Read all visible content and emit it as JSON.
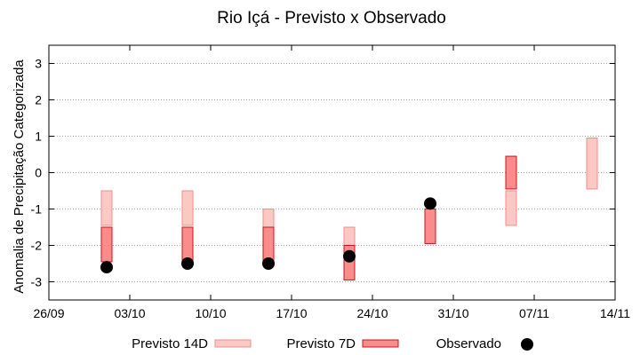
{
  "chart_data": {
    "type": "range",
    "title": "Rio Içá - Previsto x Observado",
    "xlabel": "",
    "ylabel": "Anomalia de Precipitação Categorizada",
    "ylim": [
      -3.5,
      3.5
    ],
    "yticks": [
      3,
      2,
      1,
      0,
      -1,
      -2,
      -3
    ],
    "ytick_labels": [
      "3",
      "2",
      "1",
      "0",
      "-1",
      "-2",
      "-3"
    ],
    "xlim_days": [
      0,
      49
    ],
    "xticks_days": [
      0,
      7,
      14,
      21,
      28,
      35,
      42,
      49
    ],
    "xtick_labels": [
      "26/09",
      "03/10",
      "10/10",
      "17/10",
      "24/10",
      "31/10",
      "07/11",
      "14/11"
    ],
    "grid": true,
    "legend_position": "bottom",
    "legend": {
      "p14": "Previsto 14D",
      "p7": "Previsto 7D",
      "obs": "Observado"
    },
    "colors": {
      "p14_fill": "#fbc8c4",
      "p14_edge": "#f08e8a",
      "p7_fill": "#fb8c8c",
      "p7_edge": "#c8141e",
      "obs": "#000000"
    },
    "series": [
      {
        "name": "Previsto 14D",
        "points": [
          {
            "x": 5.0,
            "low": -1.45,
            "high": -0.5
          },
          {
            "x": 12.0,
            "low": -1.45,
            "high": -0.5
          },
          {
            "x": 19.0,
            "low": -2.45,
            "high": -1.0
          },
          {
            "x": 26.0,
            "low": -2.45,
            "high": -1.5
          },
          {
            "x": 40.0,
            "low": -1.45,
            "high": -0.5
          },
          {
            "x": 47.0,
            "low": -0.45,
            "high": 0.95
          }
        ]
      },
      {
        "name": "Previsto 7D",
        "points": [
          {
            "x": 5.0,
            "low": -2.45,
            "high": -1.5
          },
          {
            "x": 12.0,
            "low": -2.45,
            "high": -1.5
          },
          {
            "x": 19.0,
            "low": -2.45,
            "high": -1.5
          },
          {
            "x": 26.0,
            "low": -2.95,
            "high": -2.0
          },
          {
            "x": 33.0,
            "low": -1.95,
            "high": -1.0
          },
          {
            "x": 40.0,
            "low": -0.45,
            "high": 0.45
          }
        ]
      },
      {
        "name": "Observado",
        "points": [
          {
            "x": 5.0,
            "y": -2.6
          },
          {
            "x": 12.0,
            "y": -2.5
          },
          {
            "x": 19.0,
            "y": -2.5
          },
          {
            "x": 26.0,
            "y": -2.3
          },
          {
            "x": 33.0,
            "y": -0.85
          }
        ]
      }
    ]
  }
}
